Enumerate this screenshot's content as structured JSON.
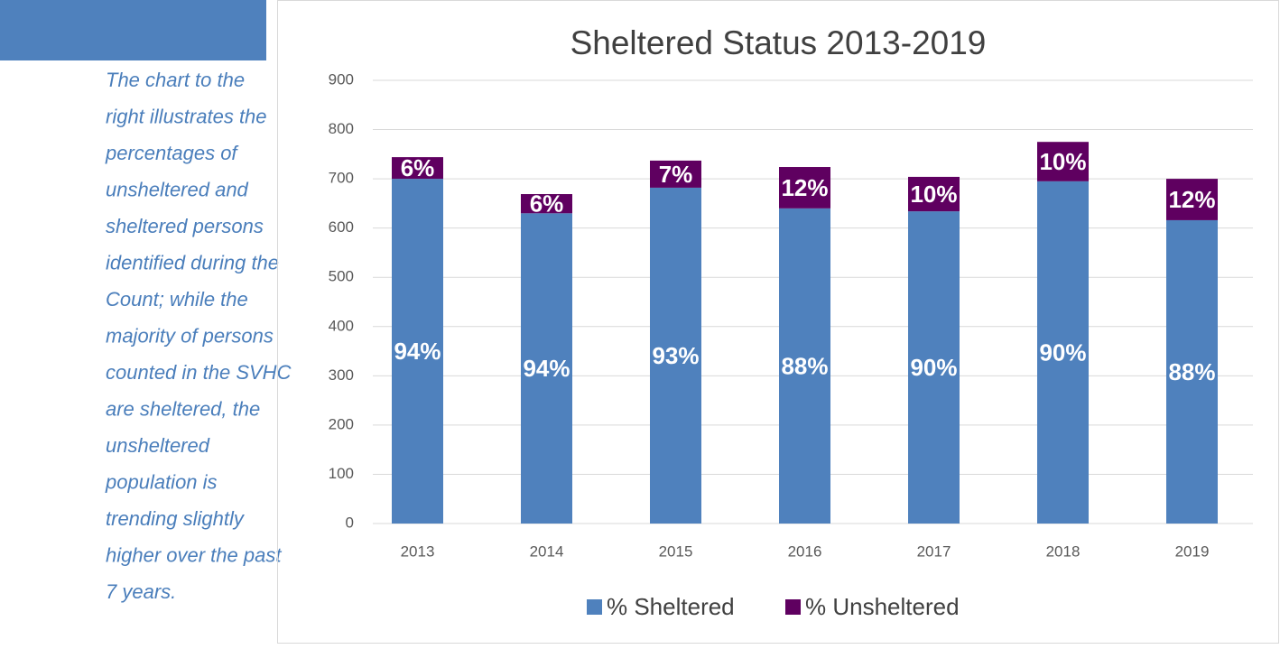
{
  "sidebar": {
    "lines": [
      "The chart to the",
      "right illustrates the",
      "percentages of",
      "unsheltered and",
      "sheltered persons",
      "identified during the",
      "Count; while the",
      "majority of persons",
      "counted in the SVHC",
      "are sheltered, the",
      "unsheltered",
      "population is",
      "trending slightly",
      "higher over the past",
      "7 years."
    ]
  },
  "chart_data": {
    "type": "stacked_bar",
    "title": "Sheltered Status 2013-2019",
    "categories": [
      "2013",
      "2014",
      "2015",
      "2016",
      "2017",
      "2018",
      "2019"
    ],
    "series": [
      {
        "name": "% Sheltered",
        "color": "#4f81bd",
        "values": [
          700,
          630,
          682,
          640,
          634,
          695,
          616
        ],
        "data_labels": [
          "94%",
          "94%",
          "93%",
          "88%",
          "90%",
          "90%",
          "88%"
        ]
      },
      {
        "name": "% Unsheltered",
        "color": "#5f0060",
        "values": [
          44,
          39,
          55,
          84,
          70,
          80,
          84
        ],
        "data_labels": [
          "6%",
          "6%",
          "7%",
          "12%",
          "10%",
          "10%",
          "12%"
        ]
      }
    ],
    "ylim": [
      0,
      900
    ],
    "yticks": [
      0,
      100,
      200,
      300,
      400,
      500,
      600,
      700,
      800,
      900
    ],
    "grid": true,
    "legend": "bottom"
  }
}
